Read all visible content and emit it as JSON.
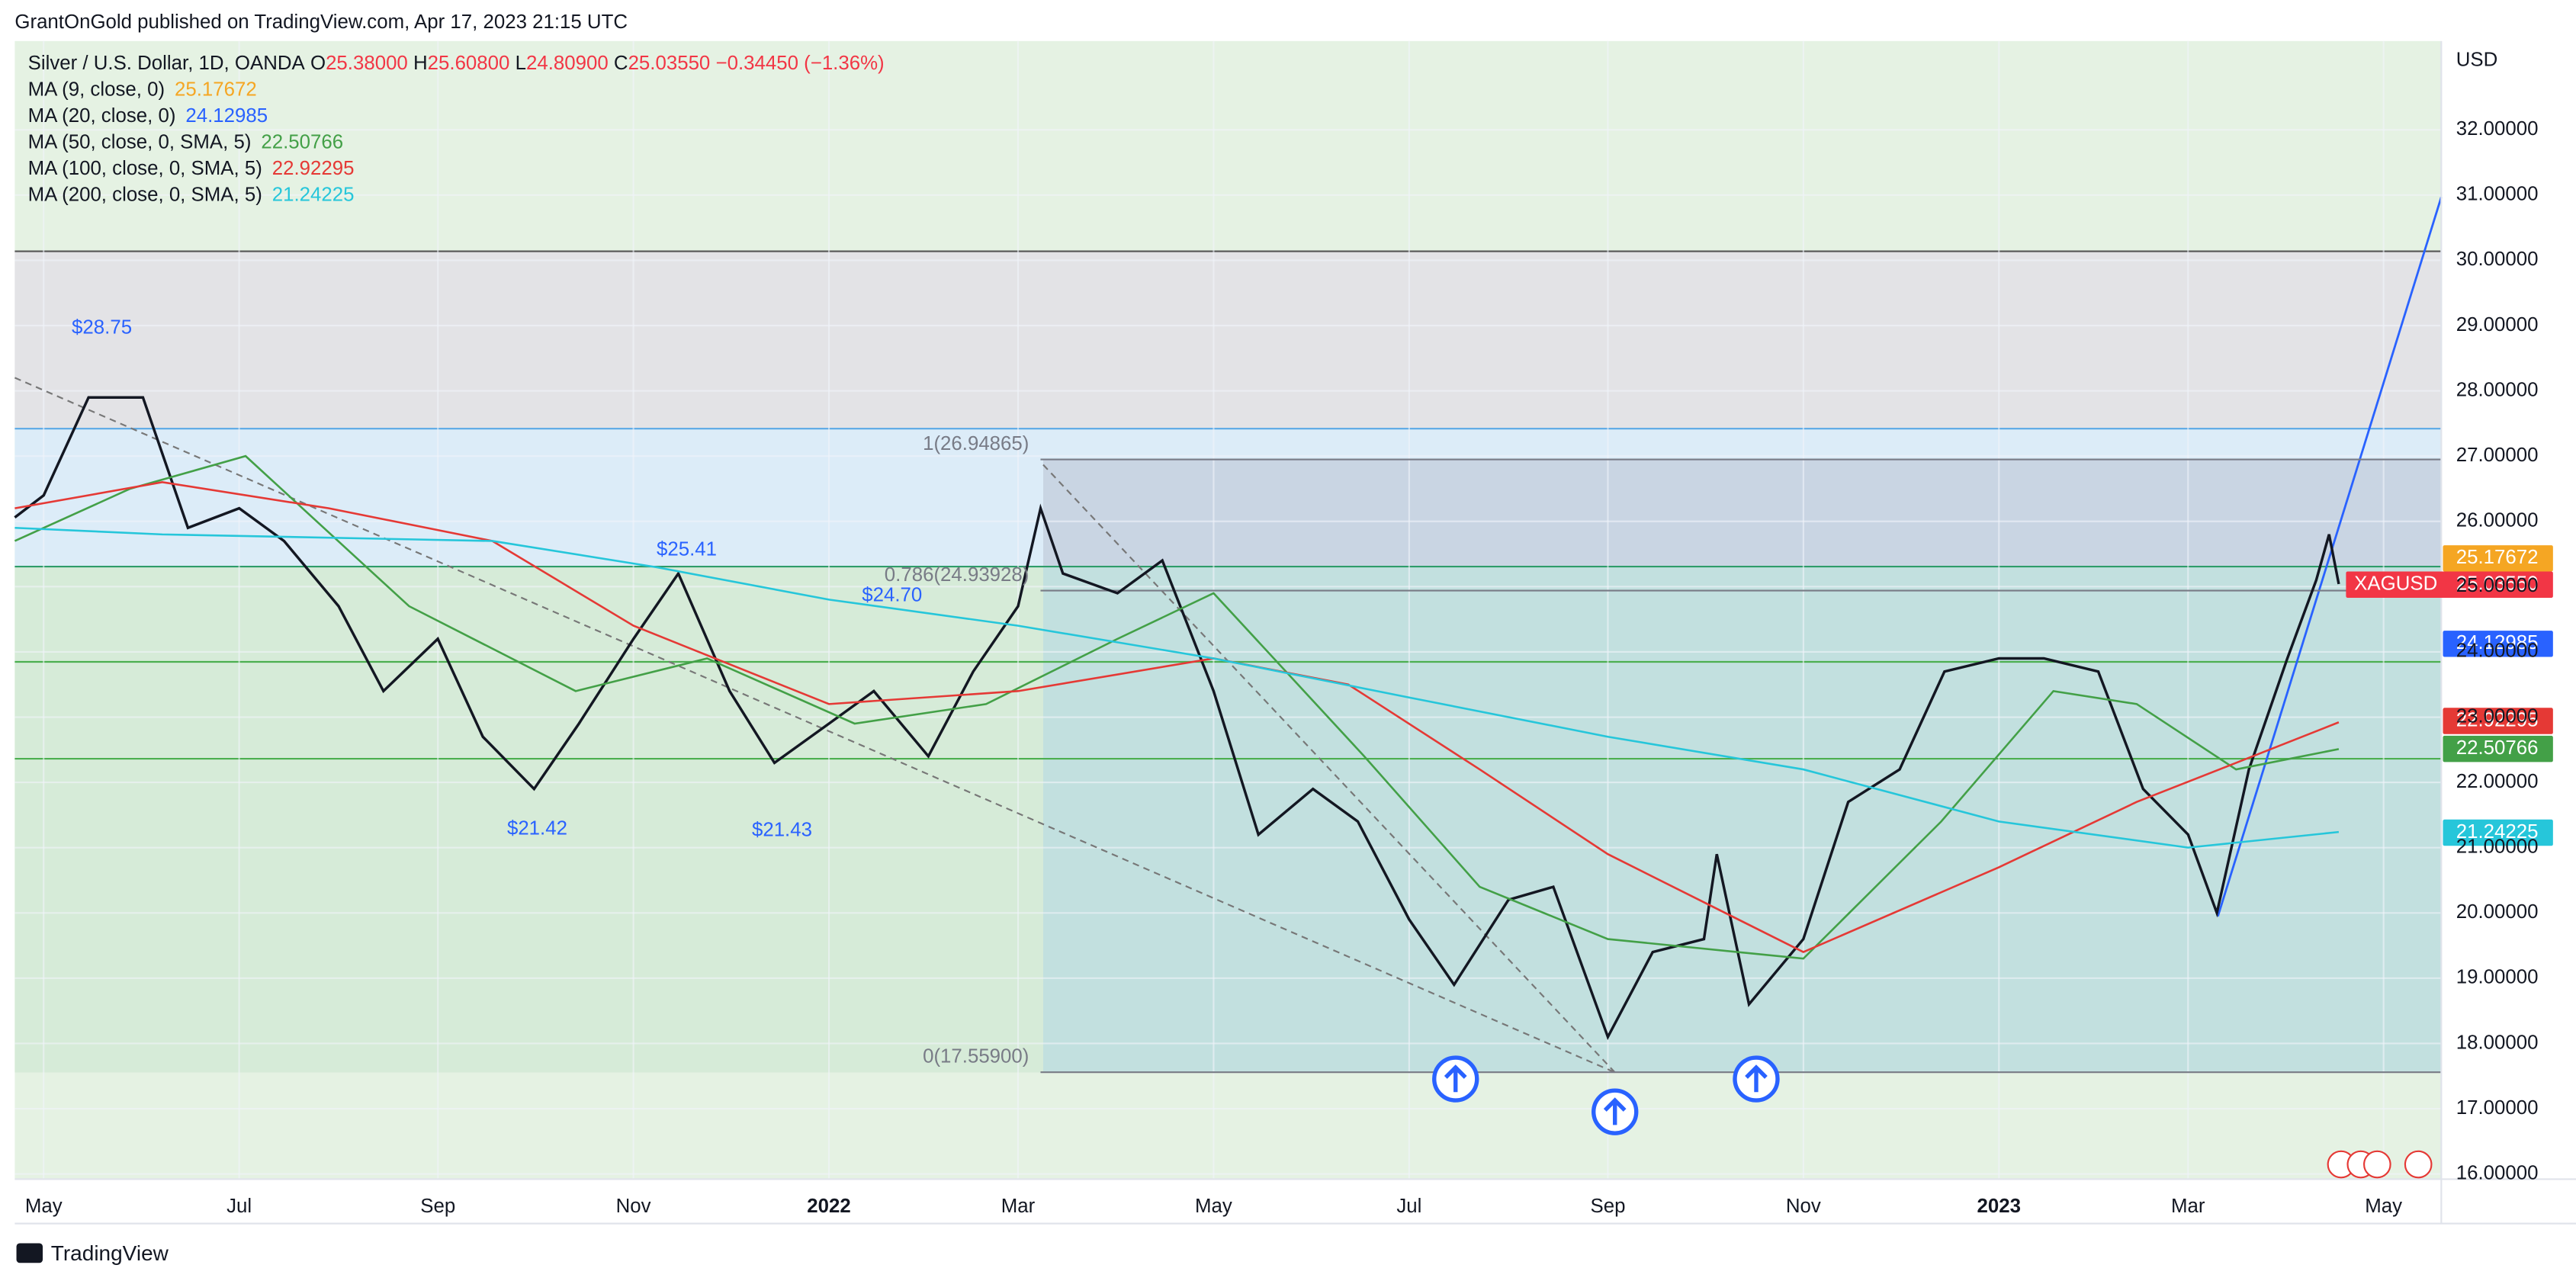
{
  "header": "GrantOnGold published on TradingView.com, Apr 17, 2023 21:15 UTC",
  "footer": "TradingView",
  "chart_data": {
    "type": "line",
    "symbol": "Silver / U.S. Dollar, 1D, OANDA",
    "ohlc": {
      "o_label": "O",
      "open": "25.38000",
      "h_label": "H",
      "high": "25.60800",
      "l_label": "L",
      "low": "24.80900",
      "c_label": "C",
      "close": "25.03550",
      "change": "−0.34450 (−1.36%)"
    },
    "ticker": "XAGUSD",
    "currency": "USD",
    "moving_averages": [
      {
        "name": "MA (9, close, 0)",
        "value": "25.17672",
        "color": "#f5a623"
      },
      {
        "name": "MA (20, close, 0)",
        "value": "24.12985",
        "color": "#2962ff"
      },
      {
        "name": "MA (50, close, 0, SMA, 5)",
        "value": "22.50766",
        "color": "#43a047"
      },
      {
        "name": "MA (100, close, 0, SMA, 5)",
        "value": "22.92295",
        "color": "#e53935"
      },
      {
        "name": "MA (200, close, 0, SMA, 5)",
        "value": "21.24225",
        "color": "#26c6da"
      }
    ],
    "xlim": [
      "2021-04-22",
      "2023-05-19"
    ],
    "xticks": [
      {
        "value": "2021-05-01",
        "label": "May"
      },
      {
        "value": "2021-07-01",
        "label": "Jul"
      },
      {
        "value": "2021-09-01",
        "label": "Sep"
      },
      {
        "value": "2021-11-01",
        "label": "Nov"
      },
      {
        "value": "2022-01-01",
        "label": "2022"
      },
      {
        "value": "2022-03-01",
        "label": "Mar"
      },
      {
        "value": "2022-05-01",
        "label": "May"
      },
      {
        "value": "2022-07-01",
        "label": "Jul"
      },
      {
        "value": "2022-09-01",
        "label": "Sep"
      },
      {
        "value": "2022-11-01",
        "label": "Nov"
      },
      {
        "value": "2023-01-01",
        "label": "2023"
      },
      {
        "value": "2023-03-01",
        "label": "Mar"
      },
      {
        "value": "2023-05-01",
        "label": "May"
      }
    ],
    "ylim": [
      15.92,
      33.36
    ],
    "yticks": [
      {
        "value": 16,
        "label": "16.00000"
      },
      {
        "value": 17,
        "label": "17.00000"
      },
      {
        "value": 18,
        "label": "18.00000"
      },
      {
        "value": 19,
        "label": "19.00000"
      },
      {
        "value": 20,
        "label": "20.00000"
      },
      {
        "value": 21,
        "label": "21.00000"
      },
      {
        "value": 22,
        "label": "22.00000"
      },
      {
        "value": 23,
        "label": "23.00000"
      },
      {
        "value": 24,
        "label": "24.00000"
      },
      {
        "value": 25,
        "label": "25.00000"
      },
      {
        "value": 26,
        "label": "26.00000"
      },
      {
        "value": 27,
        "label": "27.00000"
      },
      {
        "value": 28,
        "label": "28.00000"
      },
      {
        "value": 29,
        "label": "29.00000"
      },
      {
        "value": 30,
        "label": "30.00000"
      },
      {
        "value": 31,
        "label": "31.00000"
      },
      {
        "value": 32,
        "label": "32.00000"
      }
    ],
    "grid": true,
    "fib_start": "2022-03-08",
    "fib_levels": [
      {
        "value": 26.94865,
        "label": "1(26.94865)"
      },
      {
        "value": 24.93928,
        "label": "0.786(24.93928)"
      },
      {
        "value": 17.559,
        "label": "0(17.55900)"
      }
    ],
    "annotations": [
      "$28.75",
      "$21.42",
      "$25.41",
      "$21.43",
      "$24.70"
    ],
    "series": [
      {
        "name": "Close",
        "color": "#131722",
        "x": [
          "2021-04-22",
          "2021-05-01",
          "2021-05-15",
          "2021-06-01",
          "2021-06-15",
          "2021-07-01",
          "2021-07-15",
          "2021-08-01",
          "2021-08-15",
          "2021-09-01",
          "2021-09-15",
          "2021-10-01",
          "2021-10-15",
          "2021-11-01",
          "2021-11-15",
          "2021-12-01",
          "2021-12-15",
          "2022-01-01",
          "2022-01-15",
          "2022-02-01",
          "2022-02-15",
          "2022-03-01",
          "2022-03-08",
          "2022-03-15",
          "2022-04-01",
          "2022-04-15",
          "2022-05-01",
          "2022-05-15",
          "2022-06-01",
          "2022-06-15",
          "2022-07-01",
          "2022-07-15",
          "2022-08-01",
          "2022-08-15",
          "2022-09-01",
          "2022-09-15",
          "2022-10-01",
          "2022-10-05",
          "2022-10-15",
          "2022-11-01",
          "2022-11-15",
          "2022-12-01",
          "2022-12-15",
          "2023-01-01",
          "2023-01-15",
          "2023-02-01",
          "2023-02-15",
          "2023-03-01",
          "2023-03-10",
          "2023-03-20",
          "2023-04-01",
          "2023-04-10",
          "2023-04-14",
          "2023-04-17"
        ],
        "values": [
          26.06,
          26.4,
          27.9,
          27.9,
          25.9,
          26.2,
          25.7,
          24.7,
          23.4,
          24.2,
          22.7,
          21.9,
          22.9,
          24.2,
          25.2,
          23.4,
          22.3,
          22.9,
          23.4,
          22.4,
          23.7,
          24.7,
          26.2,
          25.2,
          24.9,
          25.4,
          23.4,
          21.2,
          21.9,
          21.4,
          19.9,
          18.9,
          20.2,
          20.4,
          18.1,
          19.4,
          19.6,
          20.9,
          18.6,
          19.6,
          21.7,
          22.2,
          23.7,
          23.9,
          23.9,
          23.7,
          21.9,
          21.2,
          20.0,
          22.2,
          23.9,
          25.1,
          25.8,
          25.04
        ]
      },
      {
        "name": "MA 50",
        "color": "#43a047",
        "x": [
          "2021-04-22",
          "2021-05-28",
          "2021-07-03",
          "2021-08-23",
          "2021-10-14",
          "2021-11-24",
          "2022-01-09",
          "2022-02-19",
          "2022-04-01",
          "2022-05-01",
          "2022-06-17",
          "2022-07-23",
          "2022-09-01",
          "2022-11-01",
          "2022-12-14",
          "2023-01-18",
          "2023-02-13",
          "2023-03-16",
          "2023-04-17"
        ],
        "values": [
          25.7,
          26.5,
          27.0,
          24.7,
          23.4,
          23.9,
          22.9,
          23.2,
          24.2,
          24.9,
          22.4,
          20.4,
          19.6,
          19.3,
          21.4,
          23.4,
          23.2,
          22.2,
          22.51
        ]
      },
      {
        "name": "MA 100",
        "color": "#e53935",
        "x": [
          "2021-04-22",
          "2021-06-07",
          "2021-07-29",
          "2021-09-18",
          "2021-11-01",
          "2022-01-01",
          "2022-03-01",
          "2022-05-01",
          "2022-06-12",
          "2022-07-23",
          "2022-09-01",
          "2022-11-01",
          "2023-01-01",
          "2023-02-13",
          "2023-03-16",
          "2023-04-17"
        ],
        "values": [
          26.2,
          26.6,
          26.2,
          25.7,
          24.4,
          23.2,
          23.4,
          23.9,
          23.5,
          22.2,
          20.9,
          19.4,
          20.7,
          21.7,
          22.3,
          22.92
        ]
      },
      {
        "name": "MA 200",
        "color": "#26c6da",
        "x": [
          "2021-04-22",
          "2021-06-07",
          "2021-09-18",
          "2021-11-08",
          "2022-01-01",
          "2022-03-01",
          "2022-05-01",
          "2022-07-01",
          "2022-09-01",
          "2022-11-01",
          "2023-01-01",
          "2023-03-01",
          "2023-04-17"
        ],
        "values": [
          25.9,
          25.8,
          25.7,
          25.3,
          24.8,
          24.4,
          23.9,
          23.3,
          22.7,
          22.2,
          21.4,
          21.0,
          21.24
        ]
      }
    ]
  }
}
